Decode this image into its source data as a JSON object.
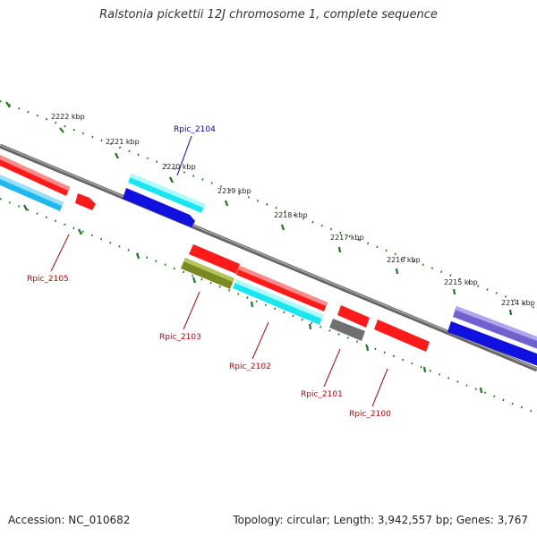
{
  "title": "Ralstonia pickettii 12J chromosome 1, complete sequence",
  "footer": {
    "accession": "Accession: NC_010682",
    "summary": "Topology: circular; Length: 3,942,557 bp; Genes: 3,767"
  },
  "colors": {
    "backbone": "#808080",
    "ticks": "#1a7a1a",
    "red": "#ff1a1a",
    "cyan": "#19e6f0",
    "blue": "#1010e0",
    "sky": "#20b8f0",
    "olive": "#7a8a20",
    "gray": "#707070",
    "purple": "#7060d0",
    "label_red": "#cc0000",
    "label_blue": "#0000cc"
  },
  "ticks": [
    "2222 kbp",
    "2221 kbp",
    "2220 kbp",
    "2219 kbp",
    "2218 kbp",
    "2217 kbp",
    "2216 kbp",
    "2215 kbp",
    "2214 kbp"
  ],
  "genes": [
    {
      "id": "Rpic_2104",
      "label_color": "label_blue"
    },
    {
      "id": "Rpic_2105",
      "label_color": "label_red"
    },
    {
      "id": "Rpic_2103",
      "label_color": "label_red"
    },
    {
      "id": "Rpic_2102",
      "label_color": "label_red"
    },
    {
      "id": "Rpic_2101",
      "label_color": "label_red"
    },
    {
      "id": "Rpic_2100",
      "label_color": "label_red"
    }
  ]
}
